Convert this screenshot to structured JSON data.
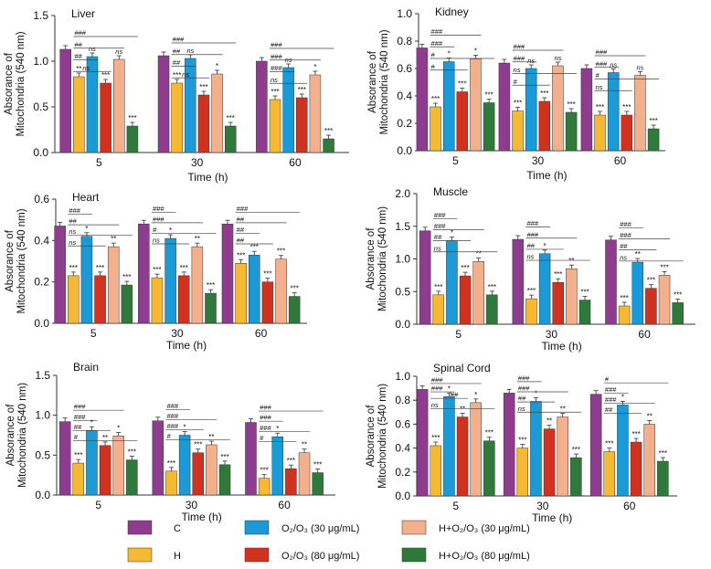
{
  "legend": [
    {
      "label": "C",
      "color": "#8E3C8E"
    },
    {
      "label": "H",
      "color": "#F6B933"
    },
    {
      "label": "O₂/O₃ (30 μg/mL)",
      "color": "#1B9AD8"
    },
    {
      "label": "O₂/O₃ (80 μg/mL)",
      "color": "#D0321F"
    },
    {
      "label": "H+O₂/O₃ (30 μg/mL)",
      "color": "#F2B08C"
    },
    {
      "label": "H+O₂/O₃ (80 μg/mL)",
      "color": "#2F7A3B"
    }
  ],
  "chart_data": [
    {
      "type": "bar",
      "title": "Liver",
      "xlabel": "Time (h)",
      "ylabel": [
        "Absorance of",
        "Mitochondria (540 nm)"
      ],
      "categories": [
        "5",
        "30",
        "60"
      ],
      "ylim": [
        0,
        1.5
      ],
      "yticks": [
        "0.0",
        "0.5",
        "1.0",
        "1.5"
      ],
      "series": [
        {
          "name": "C",
          "values": [
            1.13,
            1.06,
            1.0
          ]
        },
        {
          "name": "H",
          "values": [
            0.83,
            0.76,
            0.58
          ]
        },
        {
          "name": "O₂/O₃ (30 μg/mL)",
          "values": [
            1.05,
            1.03,
            0.93
          ]
        },
        {
          "name": "O₂/O₃ (80 μg/mL)",
          "values": [
            0.76,
            0.63,
            0.6
          ]
        },
        {
          "name": "H+O₂/O₃ (30 μg/mL)",
          "values": [
            1.02,
            0.86,
            0.85
          ]
        },
        {
          "name": "H+O₂/O₃ (80 μg/mL)",
          "values": [
            0.29,
            0.29,
            0.15
          ]
        }
      ],
      "stars": [
        [
          "",
          "**",
          "ns",
          "***",
          "ns",
          "***"
        ],
        [
          "",
          "***",
          "ns",
          "***",
          "*",
          "***"
        ],
        [
          "",
          "***",
          "ns",
          "***",
          "*",
          "***"
        ]
      ],
      "brackets": [
        [
          [
            "###",
            5
          ],
          [
            "##",
            4
          ],
          [
            "##",
            2
          ],
          [
            "ns",
            3
          ]
        ],
        [
          [
            "###",
            5
          ],
          [
            "##",
            4
          ],
          [
            "##",
            2
          ],
          [
            "ns",
            3
          ]
        ],
        [
          [
            "###",
            5
          ],
          [
            "###",
            4
          ],
          [
            "###",
            2
          ],
          [
            "ns",
            3
          ]
        ]
      ]
    },
    {
      "type": "bar",
      "title": "Kidney",
      "xlabel": "Time (h)",
      "ylabel": [
        "Absorance of",
        "Mitochondria (540 nm)"
      ],
      "categories": [
        "5",
        "30",
        "60"
      ],
      "ylim": [
        0,
        1.0
      ],
      "yticks": [
        "0.0",
        "0.2",
        "0.4",
        "0.6",
        "0.8",
        "1.0"
      ],
      "series": [
        {
          "name": "C",
          "values": [
            0.75,
            0.64,
            0.6
          ]
        },
        {
          "name": "H",
          "values": [
            0.32,
            0.29,
            0.26
          ]
        },
        {
          "name": "O₂/O₃ (30 μg/mL)",
          "values": [
            0.65,
            0.6,
            0.57
          ]
        },
        {
          "name": "O₂/O₃ (80 μg/mL)",
          "values": [
            0.43,
            0.36,
            0.26
          ]
        },
        {
          "name": "H+O₂/O₃ (30 μg/mL)",
          "values": [
            0.67,
            0.62,
            0.55
          ]
        },
        {
          "name": "H+O₂/O₃ (80 μg/mL)",
          "values": [
            0.35,
            0.28,
            0.16
          ]
        }
      ],
      "stars": [
        [
          "",
          "***",
          "*",
          "***",
          "*",
          "***"
        ],
        [
          "",
          "***",
          "ns",
          "***",
          "ns",
          "***"
        ],
        [
          "",
          "***",
          "ns",
          "***",
          "ns",
          "***"
        ]
      ],
      "brackets": [
        [
          [
            "###",
            4
          ],
          [
            "###",
            2
          ],
          [
            "#",
            5
          ],
          [
            "#",
            3
          ]
        ],
        [
          [
            "###",
            4
          ],
          [
            "###",
            2
          ],
          [
            "ns",
            5
          ],
          [
            "#",
            3
          ]
        ],
        [
          [
            "###",
            4
          ],
          [
            "###",
            2
          ],
          [
            "#",
            5
          ],
          [
            "ns",
            3
          ]
        ]
      ]
    },
    {
      "type": "bar",
      "title": "Heart",
      "xlabel": "Time (h)",
      "ylabel": [
        "Absorance of",
        "Mitochondria (540 nm)"
      ],
      "categories": [
        "5",
        "30",
        "60"
      ],
      "ylim": [
        0,
        0.6
      ],
      "yticks": [
        "0.0",
        "0.2",
        "0.4",
        "0.6"
      ],
      "series": [
        {
          "name": "C",
          "values": [
            0.47,
            0.48,
            0.48
          ]
        },
        {
          "name": "H",
          "values": [
            0.23,
            0.22,
            0.29
          ]
        },
        {
          "name": "O₂/O₃ (30 μg/mL)",
          "values": [
            0.42,
            0.41,
            0.33
          ]
        },
        {
          "name": "O₂/O₃ (80 μg/mL)",
          "values": [
            0.23,
            0.23,
            0.2
          ]
        },
        {
          "name": "H+O₂/O₃ (30 μg/mL)",
          "values": [
            0.37,
            0.37,
            0.31
          ]
        },
        {
          "name": "H+O₂/O₃ (80 μg/mL)",
          "values": [
            0.185,
            0.145,
            0.13
          ]
        }
      ],
      "stars": [
        [
          "",
          "***",
          "*",
          "***",
          "**",
          "***"
        ],
        [
          "",
          "***",
          "*",
          "***",
          "**",
          "***"
        ],
        [
          "",
          "***",
          "***",
          "***",
          "***",
          "***"
        ]
      ],
      "brackets": [
        [
          [
            "###",
            2
          ],
          [
            "##",
            4
          ],
          [
            "ns",
            5
          ],
          [
            "ns",
            3
          ]
        ],
        [
          [
            "###",
            2
          ],
          [
            "###",
            4
          ],
          [
            "#",
            5
          ],
          [
            "ns",
            3
          ]
        ],
        [
          [
            "###",
            5
          ],
          [
            "##",
            4
          ],
          [
            "##",
            2
          ],
          [
            "##",
            3
          ]
        ]
      ]
    },
    {
      "type": "bar",
      "title": "Muscle",
      "xlabel": "Time (h)",
      "ylabel": [
        "Absorance of",
        "Mitochondria (540 nm)"
      ],
      "categories": [
        "5",
        "30",
        "60"
      ],
      "ylim": [
        0,
        2.0
      ],
      "yticks": [
        "0.0",
        "0.5",
        "1.0",
        "1.5",
        "2.0"
      ],
      "series": [
        {
          "name": "C",
          "values": [
            1.43,
            1.3,
            1.29
          ]
        },
        {
          "name": "H",
          "values": [
            0.45,
            0.39,
            0.28
          ]
        },
        {
          "name": "O₂/O₃ (30 μg/mL)",
          "values": [
            1.28,
            1.08,
            0.95
          ]
        },
        {
          "name": "O₂/O₃ (80 μg/mL)",
          "values": [
            0.74,
            0.64,
            0.55
          ]
        },
        {
          "name": "H+O₂/O₃ (30 μg/mL)",
          "values": [
            0.96,
            0.85,
            0.75
          ]
        },
        {
          "name": "H+O₂/O₃ (80 μg/mL)",
          "values": [
            0.45,
            0.37,
            0.33
          ]
        }
      ],
      "stars": [
        [
          "",
          "***",
          "*",
          "***",
          "**",
          "***"
        ],
        [
          "",
          "***",
          "*",
          "***",
          "**",
          "***"
        ],
        [
          "",
          "***",
          "**",
          "***",
          "***",
          "***"
        ]
      ],
      "brackets": [
        [
          [
            "###",
            2
          ],
          [
            "###",
            4
          ],
          [
            "##",
            3
          ],
          [
            "ns",
            5
          ]
        ],
        [
          [
            "###",
            2
          ],
          [
            "###",
            4
          ],
          [
            "##",
            3
          ],
          [
            "ns",
            5
          ]
        ],
        [
          [
            "###",
            2
          ],
          [
            "###",
            4
          ],
          [
            "##",
            3
          ],
          [
            "ns",
            5
          ]
        ]
      ]
    },
    {
      "type": "bar",
      "title": "Brain",
      "xlabel": "Time (h)",
      "ylabel": [
        "Absorance of",
        "Mitochondria (540 nm)"
      ],
      "categories": [
        "5",
        "30",
        "60"
      ],
      "ylim": [
        0,
        1.5
      ],
      "yticks": [
        "0.0",
        "0.5",
        "1.0",
        "1.5"
      ],
      "series": [
        {
          "name": "C",
          "values": [
            0.92,
            0.93,
            0.91
          ]
        },
        {
          "name": "H",
          "values": [
            0.4,
            0.3,
            0.21
          ]
        },
        {
          "name": "O₂/O₃ (30 μg/mL)",
          "values": [
            0.81,
            0.75,
            0.73
          ]
        },
        {
          "name": "O₂/O₃ (80 μg/mL)",
          "values": [
            0.62,
            0.53,
            0.33
          ]
        },
        {
          "name": "H+O₂/O₃ (30 μg/mL)",
          "values": [
            0.74,
            0.63,
            0.53
          ]
        },
        {
          "name": "H+O₂/O₃ (80 μg/mL)",
          "values": [
            0.44,
            0.38,
            0.28
          ]
        }
      ],
      "stars": [
        [
          "",
          "***",
          "*",
          "**",
          "*",
          "***"
        ],
        [
          "",
          "***",
          "*",
          "***",
          "**",
          "***"
        ],
        [
          "",
          "***",
          "*",
          "***",
          "**",
          "***"
        ]
      ],
      "brackets": [
        [
          [
            "###",
            4
          ],
          [
            "###",
            2
          ],
          [
            "##",
            3
          ],
          [
            "#",
            5
          ]
        ],
        [
          [
            "###",
            2
          ],
          [
            "###",
            4
          ],
          [
            "###",
            3
          ],
          [
            "#",
            5
          ]
        ],
        [
          [
            "###",
            5
          ],
          [
            "###",
            2
          ],
          [
            "###",
            4
          ],
          [
            "#",
            3
          ]
        ]
      ]
    },
    {
      "type": "bar",
      "title": "Spinal Cord",
      "xlabel": "Time (h)",
      "ylabel": [
        "Absorance of",
        "Mitochondria (540 nm)"
      ],
      "categories": [
        "5",
        "30",
        "60"
      ],
      "ylim": [
        0,
        1.0
      ],
      "yticks": [
        "0.0",
        "0.2",
        "0.4",
        "0.6",
        "0.8",
        "1.0"
      ],
      "series": [
        {
          "name": "C",
          "values": [
            0.89,
            0.86,
            0.85
          ]
        },
        {
          "name": "H",
          "values": [
            0.42,
            0.4,
            0.37
          ]
        },
        {
          "name": "O₂/O₃ (30 μg/mL)",
          "values": [
            0.83,
            0.79,
            0.76
          ]
        },
        {
          "name": "O₂/O₃ (80 μg/mL)",
          "values": [
            0.66,
            0.56,
            0.45
          ]
        },
        {
          "name": "H+O₂/O₃ (30 μg/mL)",
          "values": [
            0.78,
            0.66,
            0.6
          ]
        },
        {
          "name": "H+O₂/O₃ (80 μg/mL)",
          "values": [
            0.46,
            0.32,
            0.29
          ]
        }
      ],
      "stars": [
        [
          "",
          "***",
          "*",
          "**",
          "*",
          "***"
        ],
        [
          "",
          "***",
          "*",
          "**",
          "**",
          "***"
        ],
        [
          "",
          "***",
          "*",
          "***",
          "**",
          "***"
        ]
      ],
      "brackets": [
        [
          [
            "###",
            4
          ],
          [
            "###",
            2
          ],
          [
            "##",
            3
          ],
          [
            "ns",
            5
          ]
        ],
        [
          [
            "###",
            2
          ],
          [
            "###",
            4
          ],
          [
            "##",
            3
          ],
          [
            "ns",
            5
          ]
        ],
        [
          [
            "#",
            5
          ],
          [
            "###",
            2
          ],
          [
            "###",
            4
          ],
          [
            "##",
            3
          ]
        ]
      ]
    }
  ]
}
